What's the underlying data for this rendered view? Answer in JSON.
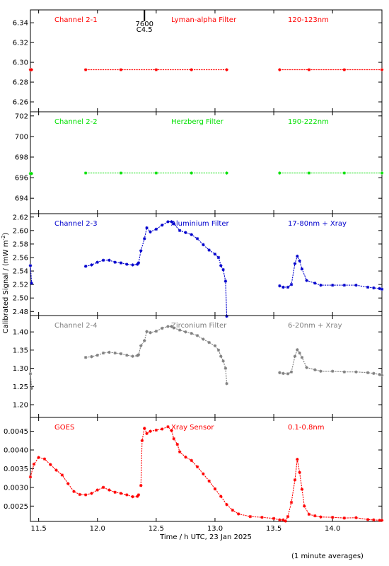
{
  "chart_data": {
    "type": "scatter",
    "xlabel": "Time / h UTC, 23 Jan 2025",
    "ylabel": "Calibrated Signal / (mW m",
    "ylabel_sup": "-2",
    "ylabel_close": ")",
    "xlim": [
      11.43,
      14.42
    ],
    "x_ticks": [
      11.5,
      12.0,
      12.5,
      13.0,
      13.5,
      14.0
    ],
    "x_tick_labels": [
      "11.5",
      "12.0",
      "12.5",
      "13.0",
      "13.5",
      "14.0"
    ],
    "marker": "asterisk",
    "grid": false,
    "flare_marker": {
      "x": 12.4,
      "class_label": "C4.5",
      "region_label": "7600"
    },
    "footnote": "(1 minute averages)",
    "panels": [
      {
        "name": "Channel 2-1",
        "filter": "Lyman-alpha Filter",
        "band": "120-123nm",
        "color": "#ff0000",
        "ylim": [
          6.25,
          6.353
        ],
        "y_ticks": [
          6.26,
          6.28,
          6.3,
          6.32,
          6.34
        ],
        "y_tick_labels": [
          "6.26",
          "6.28",
          "6.30",
          "6.32",
          "6.34"
        ],
        "segments": [
          {
            "x": [
              11.43,
              11.44
            ],
            "y": [
              6.2925,
              6.2925
            ]
          },
          {
            "x": [
              11.9,
              12.2,
              12.5,
              12.8,
              13.1
            ],
            "y": [
              6.2925,
              6.2925,
              6.2925,
              6.2925,
              6.2925
            ]
          },
          {
            "x": [
              13.55,
              13.8,
              14.1,
              14.42
            ],
            "y": [
              6.2925,
              6.2925,
              6.2925,
              6.2925
            ]
          }
        ]
      },
      {
        "name": "Channel 2-2",
        "filter": "Herzberg Filter",
        "band": "190-222nm",
        "color": "#00e000",
        "ylim": [
          692.5,
          702.4
        ],
        "y_ticks": [
          694,
          696,
          698,
          700,
          702
        ],
        "y_tick_labels": [
          "694",
          "696",
          "698",
          "700",
          "702"
        ],
        "segments": [
          {
            "x": [
              11.43,
              11.44
            ],
            "y": [
              696.4,
              696.4
            ]
          },
          {
            "x": [
              11.9,
              12.2,
              12.5,
              12.8,
              13.1
            ],
            "y": [
              696.45,
              696.45,
              696.45,
              696.45,
              696.45
            ]
          },
          {
            "x": [
              13.55,
              13.8,
              14.1,
              14.42
            ],
            "y": [
              696.45,
              696.45,
              696.45,
              696.45
            ]
          }
        ]
      },
      {
        "name": "Channel 2-3",
        "filter": "Aluminium Filter",
        "band": "17-80nm + Xray",
        "color": "#0000cc",
        "ylim": [
          2.474,
          2.625
        ],
        "y_ticks": [
          2.48,
          2.5,
          2.52,
          2.54,
          2.56,
          2.58,
          2.6,
          2.62
        ],
        "y_tick_labels": [
          "2.48",
          "2.50",
          "2.52",
          "2.54",
          "2.56",
          "2.58",
          "2.60",
          "2.62"
        ],
        "segments": [
          {
            "x": [
              11.43,
              11.44
            ],
            "y": [
              2.548,
              2.522
            ]
          },
          {
            "x": [
              11.9,
              11.95,
              12.0,
              12.05,
              12.1,
              12.15,
              12.2,
              12.25,
              12.3,
              12.34,
              12.35,
              12.37,
              12.4,
              12.42,
              12.45,
              12.5,
              12.55,
              12.6,
              12.63,
              12.65,
              12.7,
              12.75,
              12.8,
              12.85,
              12.9,
              12.95,
              13.0,
              13.03,
              13.05,
              13.07,
              13.09,
              13.1
            ],
            "y": [
              2.547,
              2.549,
              2.553,
              2.556,
              2.556,
              2.553,
              2.552,
              2.55,
              2.549,
              2.55,
              2.552,
              2.57,
              2.588,
              2.604,
              2.598,
              2.602,
              2.608,
              2.613,
              2.613,
              2.61,
              2.6,
              2.597,
              2.594,
              2.588,
              2.579,
              2.571,
              2.565,
              2.56,
              2.548,
              2.542,
              2.525,
              2.473
            ]
          },
          {
            "x": [
              13.55,
              13.58,
              13.62,
              13.65,
              13.68,
              13.7,
              13.72,
              13.74,
              13.78,
              13.85,
              13.9,
              14.0,
              14.1,
              14.2,
              14.3,
              14.35,
              14.4,
              14.42
            ],
            "y": [
              2.518,
              2.516,
              2.516,
              2.52,
              2.551,
              2.562,
              2.555,
              2.543,
              2.526,
              2.522,
              2.519,
              2.519,
              2.519,
              2.519,
              2.516,
              2.515,
              2.514,
              2.513
            ]
          }
        ]
      },
      {
        "name": "Channel 2-4",
        "filter": "Zirconium Filter",
        "band": "6-20nm + Xray",
        "color": "#808080",
        "ylim": [
          1.165,
          1.445
        ],
        "y_ticks": [
          1.2,
          1.25,
          1.3,
          1.35,
          1.4
        ],
        "y_tick_labels": [
          "1.20",
          "1.25",
          "1.30",
          "1.35",
          "1.40"
        ],
        "segments": [
          {
            "x": [
              11.43,
              11.44
            ],
            "y": [
              1.285,
              1.245
            ]
          },
          {
            "x": [
              11.9,
              11.95,
              12.0,
              12.05,
              12.1,
              12.15,
              12.2,
              12.25,
              12.3,
              12.34,
              12.35,
              12.37,
              12.4,
              12.42,
              12.45,
              12.5,
              12.55,
              12.6,
              12.63,
              12.65,
              12.7,
              12.75,
              12.8,
              12.85,
              12.9,
              12.95,
              13.0,
              13.03,
              13.05,
              13.07,
              13.09,
              13.1
            ],
            "y": [
              1.33,
              1.332,
              1.336,
              1.342,
              1.344,
              1.342,
              1.34,
              1.336,
              1.333,
              1.335,
              1.337,
              1.362,
              1.376,
              1.401,
              1.398,
              1.402,
              1.41,
              1.415,
              1.415,
              1.411,
              1.405,
              1.4,
              1.396,
              1.39,
              1.38,
              1.371,
              1.362,
              1.35,
              1.333,
              1.32,
              1.3,
              1.258
            ]
          },
          {
            "x": [
              13.55,
              13.58,
              13.62,
              13.65,
              13.68,
              13.7,
              13.72,
              13.74,
              13.78,
              13.85,
              13.9,
              14.0,
              14.1,
              14.2,
              14.3,
              14.35,
              14.4,
              14.42
            ],
            "y": [
              1.288,
              1.286,
              1.285,
              1.29,
              1.333,
              1.351,
              1.342,
              1.33,
              1.302,
              1.296,
              1.292,
              1.292,
              1.29,
              1.29,
              1.288,
              1.286,
              1.283,
              1.281
            ]
          }
        ]
      },
      {
        "name": "GOES",
        "filter": "Xray Sensor",
        "band": "0.1-0.8nm",
        "color": "#ff0000",
        "ylim": [
          0.00209,
          0.00487
        ],
        "y_ticks": [
          0.0025,
          0.003,
          0.0035,
          0.004,
          0.0045
        ],
        "y_tick_labels": [
          "0.0025",
          "0.0030",
          "0.0035",
          "0.0040",
          "0.0045"
        ],
        "segments": [
          {
            "x": [
              11.43,
              11.46,
              11.5,
              11.55,
              11.6,
              11.65,
              11.7,
              11.75,
              11.8,
              11.85,
              11.9,
              11.95,
              12.0,
              12.05,
              12.1,
              12.15,
              12.2,
              12.25,
              12.3,
              12.34,
              12.35
            ],
            "y": [
              0.00328,
              0.00362,
              0.0038,
              0.00376,
              0.00361,
              0.00346,
              0.00333,
              0.0031,
              0.00289,
              0.00281,
              0.0028,
              0.00284,
              0.00293,
              0.003,
              0.00293,
              0.00287,
              0.00284,
              0.0028,
              0.00275,
              0.00276,
              0.0028
            ]
          },
          {
            "x": [
              12.37,
              12.38,
              12.4,
              12.42,
              12.45,
              12.5,
              12.55,
              12.6,
              12.63,
              12.65,
              12.68,
              12.7,
              12.75,
              12.8,
              12.85,
              12.9,
              12.95,
              13.0,
              13.05,
              13.1,
              13.15,
              13.2,
              13.3,
              13.4,
              13.5,
              13.55,
              13.58,
              13.6,
              13.62,
              13.65,
              13.68,
              13.7,
              13.72,
              13.74,
              13.76,
              13.8,
              13.85,
              13.9,
              14.0,
              14.1,
              14.2,
              14.3,
              14.35,
              14.4,
              14.42
            ],
            "y": [
              0.00305,
              0.00425,
              0.00458,
              0.00444,
              0.0045,
              0.00453,
              0.00456,
              0.00462,
              0.00452,
              0.0043,
              0.00415,
              0.00395,
              0.00381,
              0.00372,
              0.00355,
              0.00336,
              0.00317,
              0.00296,
              0.00276,
              0.00254,
              0.00239,
              0.00229,
              0.00222,
              0.0022,
              0.00217,
              0.00213,
              0.00213,
              0.0021,
              0.00222,
              0.0026,
              0.0032,
              0.00375,
              0.0034,
              0.00295,
              0.0025,
              0.00228,
              0.00224,
              0.00221,
              0.0022,
              0.00218,
              0.00219,
              0.00214,
              0.00213,
              0.00212,
              0.00212
            ]
          }
        ]
      }
    ]
  }
}
